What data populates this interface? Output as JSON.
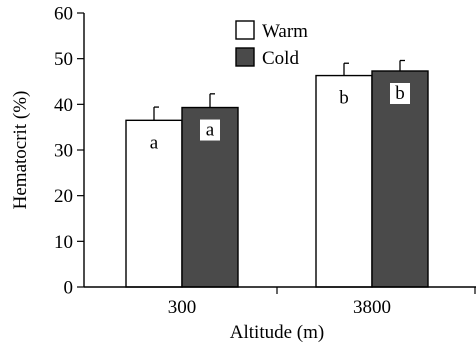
{
  "chart_data": {
    "type": "bar",
    "categories": [
      "300",
      "3800"
    ],
    "xlabel": "Altitude (m)",
    "ylabel": "Hematocrit (%)",
    "ylim": [
      0,
      60
    ],
    "yticks": [
      0,
      10,
      20,
      30,
      40,
      50,
      60
    ],
    "grid": false,
    "legend": "top-center",
    "series": [
      {
        "name": "Warm",
        "color": "#ffffff",
        "values": [
          36.5,
          46.3
        ],
        "errors": [
          2.9,
          2.7
        ],
        "letters": [
          "a",
          "b"
        ]
      },
      {
        "name": "Cold",
        "color": "#4a4a4a",
        "values": [
          39.3,
          47.3
        ],
        "errors": [
          3.0,
          2.3
        ],
        "letters": [
          "a",
          "b"
        ]
      }
    ]
  }
}
